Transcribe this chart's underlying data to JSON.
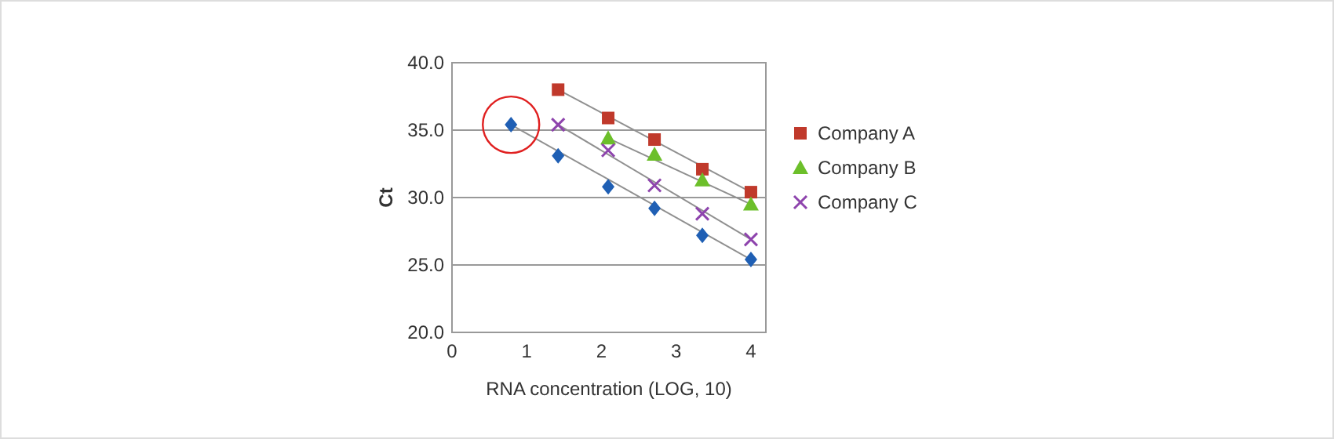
{
  "chart_data": {
    "type": "scatter",
    "xlabel": "RNA concentration (LOG, 10)",
    "ylabel": "Ct",
    "xlim": [
      0,
      4.2
    ],
    "ylim": [
      20,
      40
    ],
    "xticks": [
      0,
      1,
      2,
      3,
      4
    ],
    "yticks": [
      {
        "value": 20,
        "label": "20.0"
      },
      {
        "value": 25,
        "label": "25.0"
      },
      {
        "value": 30,
        "label": "30.0"
      },
      {
        "value": 35,
        "label": "35.0"
      },
      {
        "value": 40,
        "label": "40.0"
      }
    ],
    "grid": "y",
    "legend": "right",
    "series": [
      {
        "type": "line",
        "color": "#909090",
        "x": [
          0.79,
          4.0
        ],
        "values": [
          35.4,
          25.4
        ]
      },
      {
        "type": "line",
        "color": "#909090",
        "x": [
          1.42,
          4.0
        ],
        "values": [
          38.0,
          30.4
        ]
      },
      {
        "type": "line",
        "color": "#909090",
        "x": [
          2.09,
          4.0
        ],
        "values": [
          34.4,
          29.5
        ]
      },
      {
        "type": "line",
        "color": "#909090",
        "x": [
          1.42,
          4.0
        ],
        "values": [
          35.4,
          26.9
        ]
      },
      {
        "color": "#1f5fb4",
        "marker": "diamond",
        "x": [
          0.79,
          1.42,
          2.09,
          2.71,
          3.35,
          4.0
        ],
        "values": [
          35.4,
          33.1,
          30.8,
          29.2,
          27.2,
          25.4
        ]
      },
      {
        "name": "Company A",
        "color": "#c0392b",
        "marker": "square",
        "x": [
          1.42,
          2.09,
          2.71,
          3.35,
          4.0
        ],
        "values": [
          38.0,
          35.9,
          34.3,
          32.1,
          30.4
        ]
      },
      {
        "name": "Company B",
        "color": "#6cbf2a",
        "marker": "triangle",
        "x": [
          2.09,
          2.71,
          3.35,
          4.0
        ],
        "values": [
          34.4,
          33.2,
          31.3,
          29.5
        ]
      },
      {
        "name": "Company C",
        "color": "#8e44ad",
        "marker": "cross",
        "x": [
          1.42,
          2.09,
          2.71,
          3.35,
          4.0
        ],
        "values": [
          35.4,
          33.5,
          30.9,
          28.8,
          26.9
        ]
      }
    ]
  }
}
